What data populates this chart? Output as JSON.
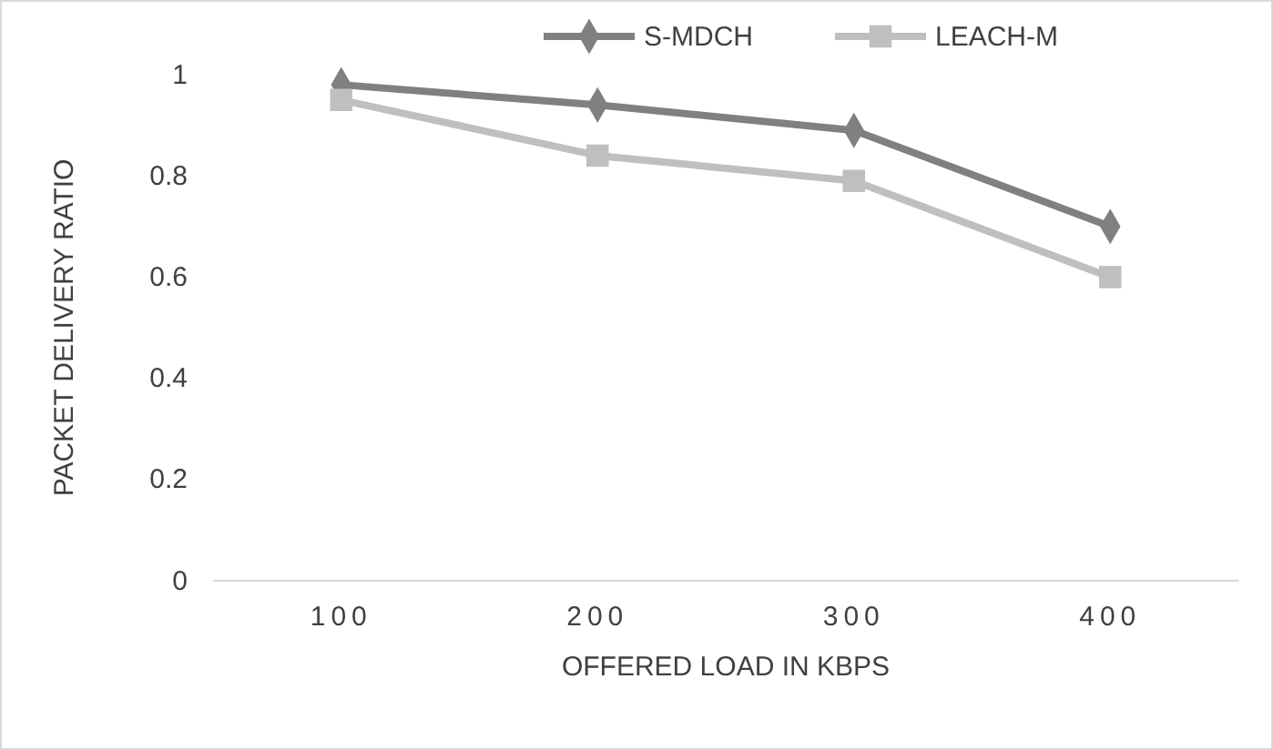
{
  "chart_data": {
    "type": "line",
    "xlabel": "OFFERED LOAD IN KBPS",
    "ylabel": "PACKET DELIVERY RATIO",
    "categories": [
      "100",
      "200",
      "300",
      "400"
    ],
    "series": [
      {
        "name": "S-MDCH",
        "color": "#808080",
        "marker": "diamond",
        "values": [
          0.98,
          0.94,
          0.89,
          0.7
        ]
      },
      {
        "name": "LEACH-M",
        "color": "#bfbfbf",
        "marker": "square",
        "values": [
          0.95,
          0.84,
          0.79,
          0.6
        ]
      }
    ],
    "ylim": [
      0,
      1
    ],
    "yticks": [
      0,
      0.2,
      0.4,
      0.6,
      0.8,
      1
    ],
    "grid": false,
    "legend": "top",
    "line_style": "solid"
  }
}
